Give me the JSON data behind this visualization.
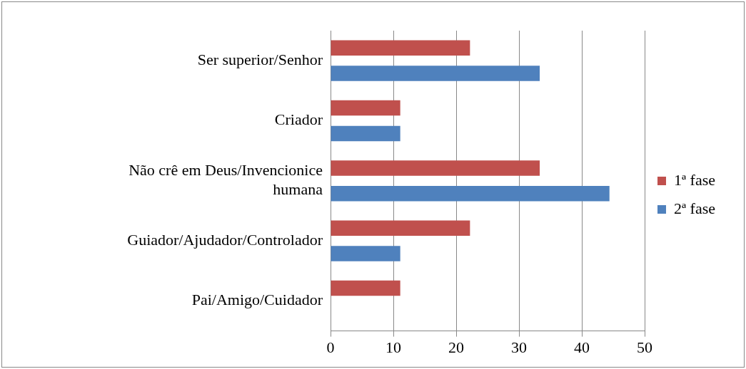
{
  "chart_data": {
    "type": "bar",
    "orientation": "horizontal",
    "categories": [
      "Ser superior/Senhor",
      "Criador",
      "Não crê em Deus/Invencionice humana",
      "Guiador/Ajudador/Controlador",
      "Pai/Amigo/Cuidador"
    ],
    "series": [
      {
        "name": "1ª fase",
        "color": "#c0504d",
        "values": [
          22.2,
          11.1,
          33.3,
          22.2,
          11.1
        ]
      },
      {
        "name": "2ª fase",
        "color": "#4f81bd",
        "values": [
          33.3,
          11.1,
          44.4,
          11.1,
          0
        ]
      }
    ],
    "xlim": [
      0,
      50
    ],
    "xticks": [
      0,
      10,
      20,
      30,
      40,
      50
    ],
    "grid": "x",
    "legend": "right"
  }
}
